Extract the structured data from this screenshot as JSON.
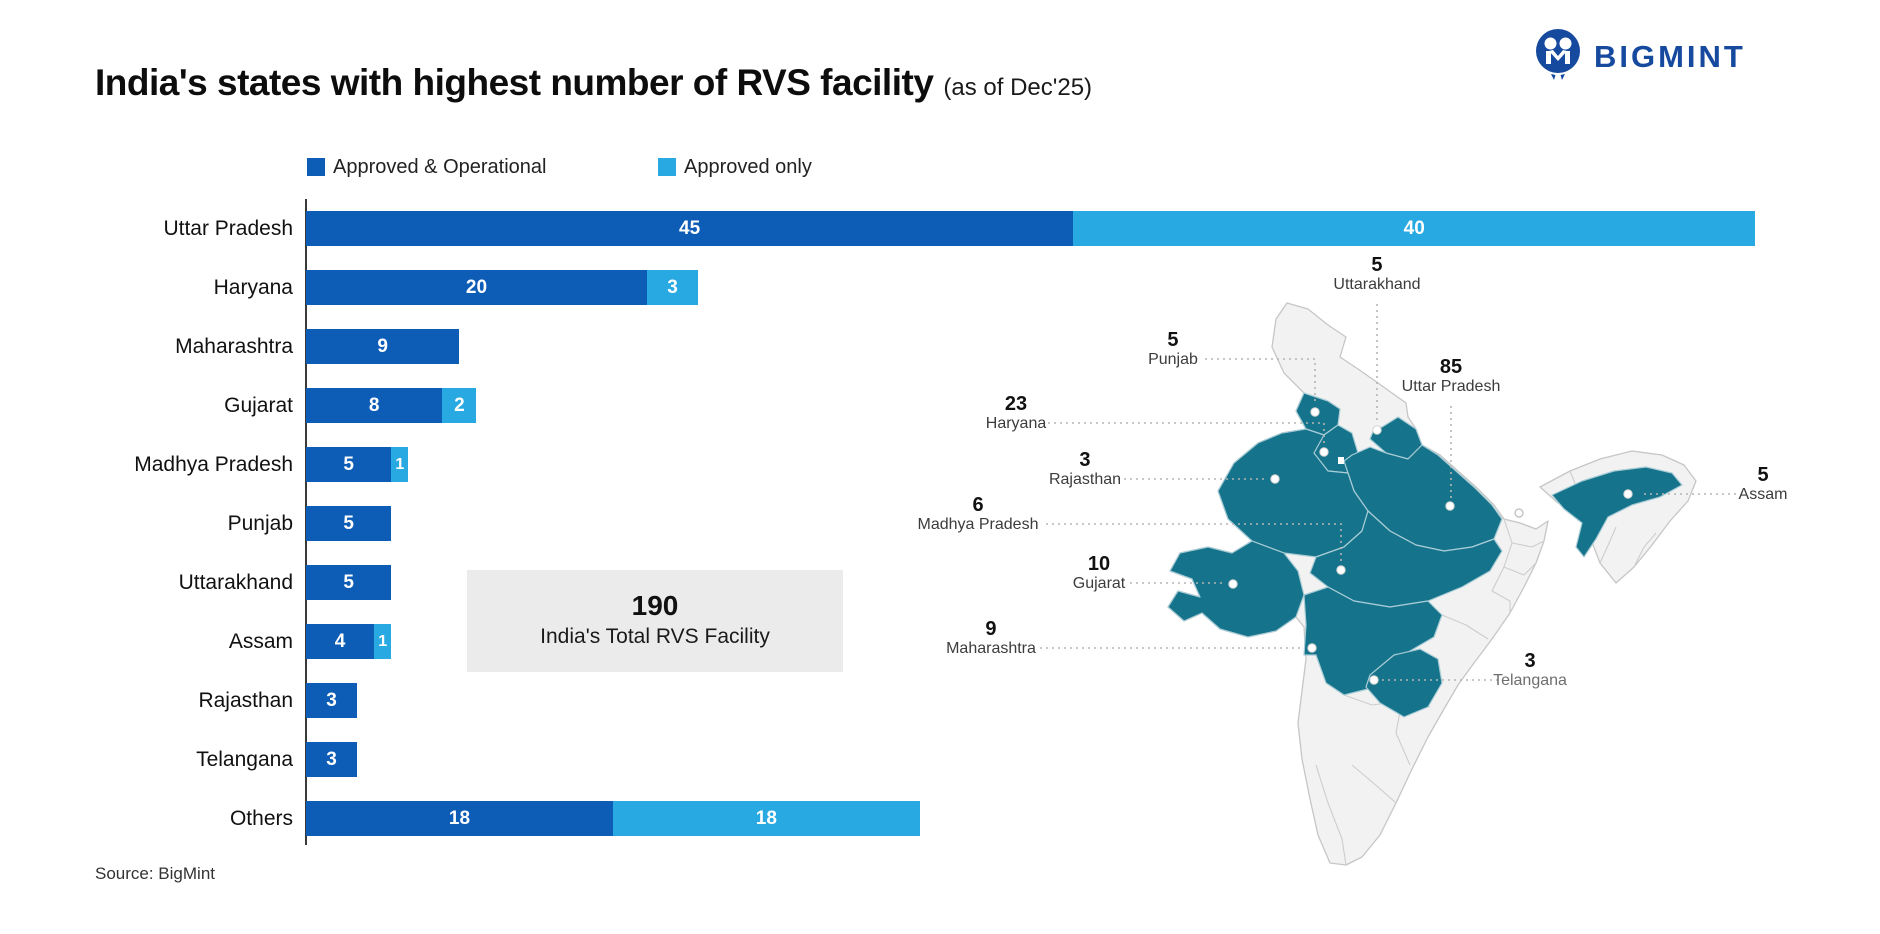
{
  "header": {
    "title": "India's states with highest number of RVS facility",
    "subtitle": "(as of Dec'25)",
    "brand": "BIGMINT"
  },
  "legend": {
    "items": [
      {
        "id": "operational",
        "label": "Approved & Operational",
        "color": "#0D5CB6"
      },
      {
        "id": "approved",
        "label": "Approved only",
        "color": "#29A9E2"
      }
    ]
  },
  "chart_data": {
    "type": "bar",
    "orientation": "horizontal",
    "title": "India's states with highest number of RVS facility (as of Dec'25)",
    "xlim": [
      0,
      85
    ],
    "grid": false,
    "categories": [
      "Uttar Pradesh",
      "Haryana",
      "Maharashtra",
      "Gujarat",
      "Madhya Pradesh",
      "Punjab",
      "Uttarakhand",
      "Assam",
      "Rajasthan",
      "Telangana",
      "Others"
    ],
    "series": [
      {
        "name": "Approved & Operational",
        "color": "#0D5CB6",
        "values": [
          45,
          20,
          9,
          8,
          5,
          5,
          5,
          4,
          3,
          3,
          18
        ]
      },
      {
        "name": "Approved only",
        "color": "#29A9E2",
        "values": [
          40,
          3,
          0,
          2,
          1,
          0,
          0,
          1,
          0,
          0,
          18
        ]
      }
    ],
    "annotation": {
      "value": "190",
      "caption": "India's Total RVS Facility"
    }
  },
  "map": {
    "highlight_color": "#15748B",
    "base_color": "#F2F2F2",
    "labels": [
      {
        "id": "uttarakhand",
        "value": "5",
        "state": "Uttarakhand"
      },
      {
        "id": "punjab",
        "value": "5",
        "state": "Punjab"
      },
      {
        "id": "haryana",
        "value": "23",
        "state": "Haryana"
      },
      {
        "id": "up",
        "value": "85",
        "state": "Uttar Pradesh"
      },
      {
        "id": "rajasthan",
        "value": "3",
        "state": "Rajasthan"
      },
      {
        "id": "mp",
        "value": "6",
        "state": "Madhya Pradesh"
      },
      {
        "id": "gujarat",
        "value": "10",
        "state": "Gujarat"
      },
      {
        "id": "maharashtra",
        "value": "9",
        "state": "Maharashtra"
      },
      {
        "id": "telangana",
        "value": "3",
        "state": "Telangana"
      },
      {
        "id": "assam",
        "value": "5",
        "state": "Assam"
      }
    ]
  },
  "source": "Source: BigMint"
}
